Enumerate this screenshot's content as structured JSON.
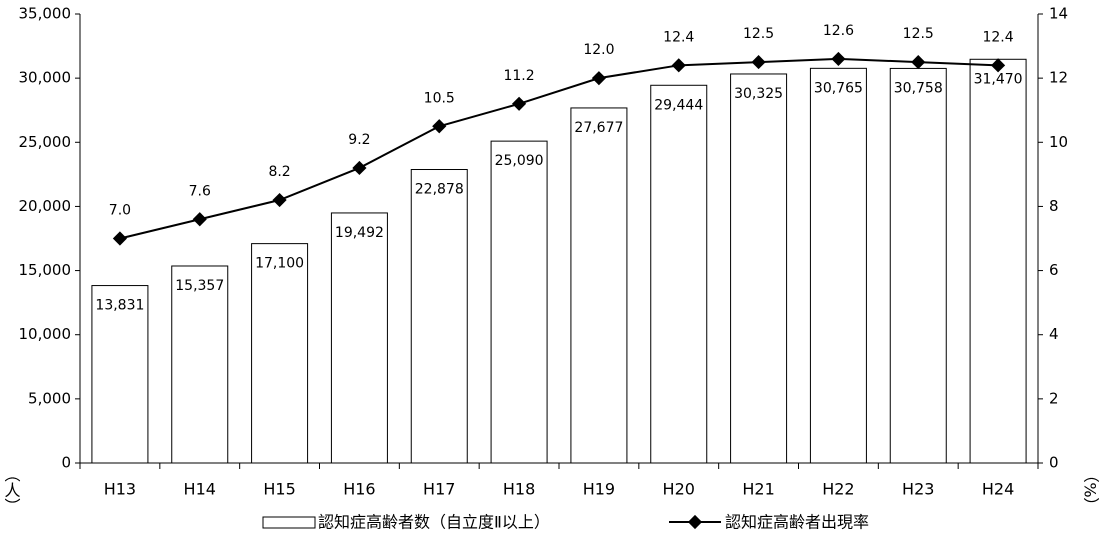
{
  "chart_data": {
    "type": "bar",
    "categories": [
      "H13",
      "H14",
      "H15",
      "H16",
      "H17",
      "H18",
      "H19",
      "H20",
      "H21",
      "H22",
      "H23",
      "H24"
    ],
    "series": [
      {
        "name": "認知症高齢者数（自立度Ⅱ以上）",
        "type": "bar",
        "axis": "left",
        "values": [
          13831,
          15357,
          17100,
          19492,
          22878,
          25090,
          27677,
          29444,
          30325,
          30765,
          30758,
          31470
        ],
        "labels": [
          "13,831",
          "15,357",
          "17,100",
          "19,492",
          "22,878",
          "25,090",
          "27,677",
          "29,444",
          "30,325",
          "30,765",
          "30,758",
          "31,470"
        ]
      },
      {
        "name": "認知症高齢者出現率",
        "type": "line",
        "axis": "right",
        "values": [
          7.0,
          7.6,
          8.2,
          9.2,
          10.5,
          11.2,
          12.0,
          12.4,
          12.5,
          12.6,
          12.5,
          12.4
        ],
        "labels": [
          "7.0",
          "7.6",
          "8.2",
          "9.2",
          "10.5",
          "11.2",
          "12.0",
          "12.4",
          "12.5",
          "12.6",
          "12.5",
          "12.4"
        ]
      }
    ],
    "y_left": {
      "ylim": [
        0,
        35000
      ],
      "ticks": [
        0,
        5000,
        10000,
        15000,
        20000,
        25000,
        30000,
        35000
      ],
      "tick_labels": [
        "0",
        "5,000",
        "10,000",
        "15,000",
        "20,000",
        "25,000",
        "30,000",
        "35,000"
      ],
      "unit": "（人）"
    },
    "y_right": {
      "ylim": [
        0,
        14
      ],
      "ticks": [
        0,
        2,
        4,
        6,
        8,
        10,
        12,
        14
      ],
      "tick_labels": [
        "0",
        "2",
        "4",
        "6",
        "8",
        "10",
        "12",
        "14"
      ],
      "unit": "（%）"
    },
    "legend": {
      "position": "bottom",
      "items": [
        "認知症高齢者数（自立度Ⅱ以上）",
        "認知症高齢者出現率"
      ]
    },
    "grid": false,
    "colors": {
      "bar_fill": "#ffffff",
      "bar_stroke": "#000000",
      "line": "#000000"
    }
  }
}
